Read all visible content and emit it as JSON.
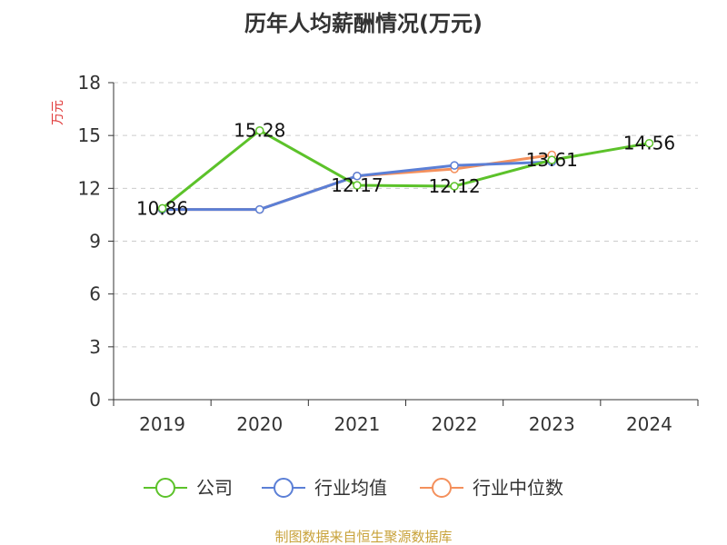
{
  "chart_data": {
    "type": "line",
    "title": "历年人均薪酬情况(万元)",
    "ylabel": "万元",
    "xlabel": "",
    "x": [
      "2019",
      "2020",
      "2021",
      "2022",
      "2023",
      "2024"
    ],
    "ylim": [
      0,
      18
    ],
    "yticks": [
      0,
      3,
      6,
      9,
      12,
      15,
      18
    ],
    "grid": true,
    "legend_position": "bottom",
    "series": [
      {
        "name": "公司",
        "color": "#5cc22a",
        "values": [
          10.86,
          15.28,
          12.17,
          12.12,
          13.61,
          14.56
        ]
      },
      {
        "name": "行业均值",
        "color": "#5b7fd6",
        "values": [
          10.8,
          10.8,
          12.7,
          13.3,
          13.5,
          null
        ]
      },
      {
        "name": "行业中位数",
        "color": "#f4905c",
        "values": [
          10.8,
          10.8,
          12.7,
          13.1,
          13.9,
          null
        ]
      }
    ],
    "data_labels": [
      {
        "series": 0,
        "index": 0,
        "text": "10.86"
      },
      {
        "series": 0,
        "index": 1,
        "text": "15.28"
      },
      {
        "series": 0,
        "index": 2,
        "text": "12.17"
      },
      {
        "series": 0,
        "index": 3,
        "text": "12.12"
      },
      {
        "series": 0,
        "index": 4,
        "text": "13.61"
      },
      {
        "series": 0,
        "index": 5,
        "text": "14.56"
      }
    ]
  },
  "colors": {
    "ylabel": "#e03a3a",
    "axis": "#333333",
    "grid": "#cccccc",
    "source": "#c8a23a"
  },
  "source_text": "制图数据来自恒生聚源数据库"
}
